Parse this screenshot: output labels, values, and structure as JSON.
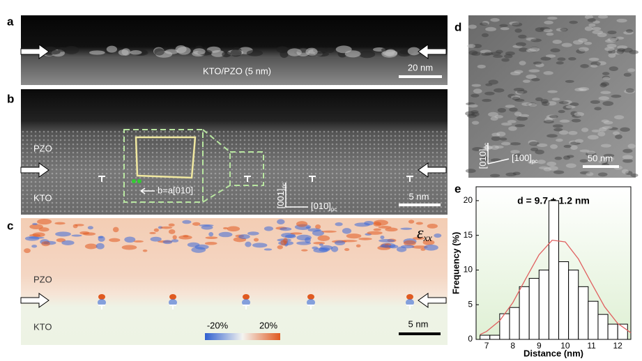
{
  "panels": {
    "a": {
      "label": "a",
      "caption": "KTO/PZO (5 nm)",
      "scale": "20 nm"
    },
    "b": {
      "label": "b",
      "top_layer": "PZO",
      "bottom_layer": "KTO",
      "burgers": "b=a[010]",
      "scale": "5 nm",
      "axis_v": "[001]",
      "axis_v_sub": "pc",
      "axis_h": "[010]",
      "axis_h_sub": "pc"
    },
    "c": {
      "label": "c",
      "top_layer": "PZO",
      "bottom_layer": "KTO",
      "scale": "5 nm",
      "strain": "ε",
      "strain_sub": "xx",
      "cbar_min": "-20%",
      "cbar_max": "20%"
    },
    "d": {
      "label": "d",
      "axis_v": "[010]",
      "axis_v_sub": "pc",
      "axis_h": "[100]",
      "axis_h_sub": "pc",
      "scale": "50 nm"
    },
    "e": {
      "label": "e"
    }
  },
  "chart_data": {
    "type": "histogram",
    "title": "d = 9.7 ± 1.2 nm",
    "xlabel": "Distance (nm)",
    "ylabel": "Frequency (%)",
    "bins": [
      6.75,
      7.125,
      7.5,
      7.875,
      8.25,
      8.625,
      9,
      9.375,
      9.75,
      10.125,
      10.5,
      10.875,
      11.25,
      11.625,
      12,
      12.375
    ],
    "values": [
      0.6,
      0.6,
      3.7,
      4.6,
      7.6,
      8.8,
      10,
      20,
      11.2,
      10,
      7.6,
      5.5,
      3.6,
      2.2,
      2.2
    ],
    "color": "#ffffff",
    "fit": {
      "x": [
        6.75,
        7,
        7.5,
        8,
        8.5,
        9,
        9.5,
        10,
        10.5,
        11,
        11.5,
        12,
        12.5
      ],
      "values": [
        0.7,
        1.15,
        2.7,
        5.3,
        8.8,
        12.2,
        14.3,
        14.05,
        11.6,
        8.1,
        4.7,
        2.3,
        0.96
      ],
      "color": "#e06060"
    },
    "xlim": [
      6.6,
      12.5
    ],
    "xticks": [
      7,
      8,
      9,
      10,
      11,
      12
    ],
    "ylim": [
      0,
      22
    ],
    "yticks": [
      0,
      5,
      10,
      15,
      20
    ]
  }
}
